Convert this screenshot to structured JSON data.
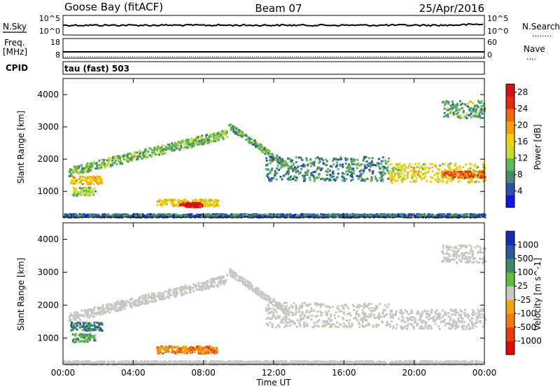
{
  "header": {
    "station": "Goose Bay (fitACF)",
    "beam": "Beam 07",
    "date": "25/Apr/2016"
  },
  "strip_labels": {
    "nsky": "N.Sky",
    "nsearch": "N.Search",
    "nsearch_dots": "........",
    "freq_line1": "Freq.",
    "freq_line2": "[MHz]",
    "nave": "Nave",
    "nave_dots": "....",
    "cpid": "CPID",
    "cpid_value": "tau (fast) 503"
  },
  "strip_ticks": {
    "noise_left": [
      "10^5",
      "10^0"
    ],
    "noise_right": [
      "10^5",
      "10^0"
    ],
    "freq_left": [
      "18",
      "8"
    ],
    "nave_right": [
      "60",
      "0"
    ]
  },
  "chart_data": [
    {
      "type": "heatmap",
      "name": "power",
      "xlabel": "",
      "ylabel": "Slant Range [km]",
      "x_ticks": [
        "00:00",
        "04:00",
        "08:00",
        "12:00",
        "16:00",
        "20:00",
        "00:00"
      ],
      "y_ticks": [
        "1000",
        "2000",
        "3000",
        "4000"
      ],
      "ylim": [
        200,
        4500
      ],
      "xlim_hours": [
        0,
        24
      ],
      "colorbar": {
        "label": "Power [dB]",
        "ticks": [
          "4",
          "8",
          "12",
          "16",
          "20",
          "24",
          "28"
        ],
        "range": [
          0,
          30
        ],
        "colors": [
          "#1414e6",
          "#2a52a8",
          "#4a8a6e",
          "#5fb85a",
          "#c8dc2c",
          "#f6ce14",
          "#f5a00a",
          "#ee6a0a",
          "#e6280a",
          "#d21414"
        ]
      },
      "bands": [
        {
          "t0": 0.3,
          "t1": 9.3,
          "r0": 1500,
          "r1": 1780,
          "r1_end": 2950,
          "level": 0.35
        },
        {
          "t0": 0.4,
          "t1": 2.2,
          "r0": 1250,
          "r1": 1500,
          "level": 0.6
        },
        {
          "t0": 0.5,
          "t1": 1.8,
          "r0": 900,
          "r1": 1150,
          "level": 0.4
        },
        {
          "t0": 5.3,
          "t1": 8.8,
          "r0": 560,
          "r1": 780,
          "level": 0.55
        },
        {
          "t0": 6.6,
          "t1": 7.9,
          "r0": 540,
          "r1": 680,
          "level": 0.95
        },
        {
          "t0": 9.4,
          "t1": 12.8,
          "r0": 2950,
          "r1": 3150,
          "r1_end": 1900,
          "level": 0.3
        },
        {
          "t0": 11.5,
          "t1": 18.5,
          "r0": 1350,
          "r1": 2100,
          "level": 0.25
        },
        {
          "t0": 18.5,
          "t1": 24.0,
          "r0": 1300,
          "r1": 1900,
          "level": 0.5
        },
        {
          "t0": 21.5,
          "t1": 24.0,
          "r0": 1450,
          "r1": 1650,
          "level": 0.75
        },
        {
          "t0": 21.5,
          "t1": 24.0,
          "r0": 3300,
          "r1": 3850,
          "level": 0.3
        },
        {
          "t0": 0.0,
          "t1": 24.0,
          "r0": 220,
          "r1": 330,
          "level": 0.2
        }
      ]
    },
    {
      "type": "heatmap",
      "name": "velocity",
      "xlabel": "Time UT",
      "ylabel": "Slant Range [km]",
      "x_ticks": [
        "00:00",
        "04:00",
        "08:00",
        "12:00",
        "16:00",
        "20:00",
        "00:00"
      ],
      "y_ticks": [
        "1000",
        "2000",
        "3000",
        "4000"
      ],
      "ylim": [
        200,
        4500
      ],
      "xlim_hours": [
        0,
        24
      ],
      "colorbar": {
        "label": "Velocity [m s^-1]",
        "ticks": [
          "1000",
          "500",
          "100",
          "25",
          "-25",
          "-100",
          "-500",
          "-1000"
        ],
        "colors": [
          "#1e28b4",
          "#2a5a9a",
          "#3c8a6a",
          "#62bc3c",
          "#c8c8c0",
          "#f5a50a",
          "#f07a0a",
          "#e63c0a",
          "#dc0a0a"
        ]
      },
      "bands": [
        {
          "t0": 0.3,
          "t1": 9.3,
          "r0": 1500,
          "r1": 1780,
          "r1_end": 2950,
          "level": 0.48
        },
        {
          "t0": 0.4,
          "t1": 2.2,
          "r0": 1250,
          "r1": 1500,
          "level": 0.25
        },
        {
          "t0": 0.5,
          "t1": 1.8,
          "r0": 900,
          "r1": 1150,
          "level": 0.35
        },
        {
          "t0": 5.3,
          "t1": 8.8,
          "r0": 560,
          "r1": 780,
          "level": 0.7
        },
        {
          "t0": 9.4,
          "t1": 12.8,
          "r0": 2950,
          "r1": 3150,
          "r1_end": 1900,
          "level": 0.5
        },
        {
          "t0": 11.5,
          "t1": 18.5,
          "r0": 1350,
          "r1": 2100,
          "level": 0.5
        },
        {
          "t0": 18.5,
          "t1": 24.0,
          "r0": 1300,
          "r1": 1900,
          "level": 0.5
        },
        {
          "t0": 21.5,
          "t1": 24.0,
          "r0": 3300,
          "r1": 3850,
          "level": 0.5
        },
        {
          "t0": 0.0,
          "t1": 24.0,
          "r0": 220,
          "r1": 330,
          "level": 0.5
        }
      ]
    }
  ]
}
